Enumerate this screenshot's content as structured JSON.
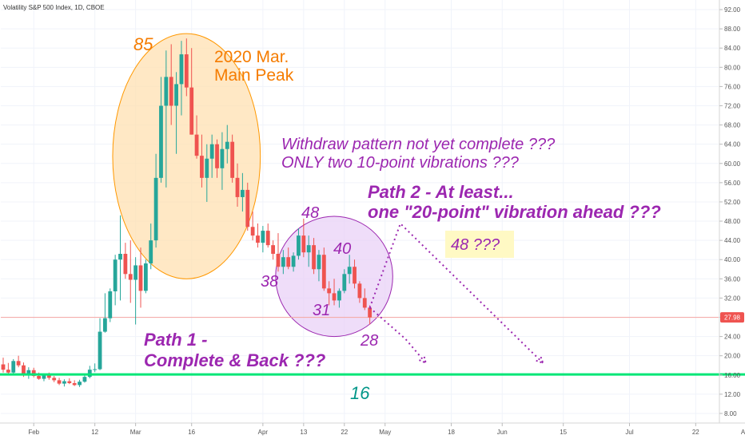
{
  "chart_data": {
    "type": "candlestick",
    "title": "Volatility S&P 500 Index, 1D, CBOE",
    "price_label": "27.98",
    "ylim": [
      6,
      94
    ],
    "yticks": [
      8,
      12,
      16,
      20,
      24,
      28,
      32,
      36,
      40,
      44,
      48,
      52,
      56,
      60,
      64,
      68,
      72,
      76,
      80,
      84,
      88,
      92
    ],
    "ytick_labels": [
      "8.00",
      "12.00",
      "16.00",
      "20.00",
      "24.00",
      "28.00",
      "32.00",
      "36.00",
      "40.00",
      "44.00",
      "48.00",
      "52.00",
      "56.00",
      "60.00",
      "64.00",
      "68.00",
      "72.00",
      "76.00",
      "80.00",
      "84.00",
      "88.00",
      "92.00"
    ],
    "x_index_range": [
      0,
      152
    ],
    "xticks": [
      {
        "i": 6,
        "label": "Feb"
      },
      {
        "i": 18,
        "label": "12"
      },
      {
        "i": 26,
        "label": "Mar"
      },
      {
        "i": 37,
        "label": "16"
      },
      {
        "i": 51,
        "label": "Apr"
      },
      {
        "i": 59,
        "label": "13"
      },
      {
        "i": 67,
        "label": "22"
      },
      {
        "i": 75,
        "label": "May"
      },
      {
        "i": 88,
        "label": "18"
      },
      {
        "i": 98,
        "label": "Jun"
      },
      {
        "i": 110,
        "label": "15"
      },
      {
        "i": 123,
        "label": "Jul"
      },
      {
        "i": 136,
        "label": "22"
      },
      {
        "i": 146,
        "label": "Aug"
      }
    ],
    "candles": [
      {
        "o": 18.2,
        "h": 19.6,
        "l": 16.5,
        "c": 17.1
      },
      {
        "o": 17.1,
        "h": 18.5,
        "l": 16.2,
        "c": 16.5
      },
      {
        "o": 16.5,
        "h": 19.3,
        "l": 16.0,
        "c": 18.9
      },
      {
        "o": 18.9,
        "h": 20.0,
        "l": 17.6,
        "c": 18.0
      },
      {
        "o": 18.0,
        "h": 18.6,
        "l": 15.6,
        "c": 16.0
      },
      {
        "o": 16.0,
        "h": 17.6,
        "l": 15.2,
        "c": 17.0
      },
      {
        "o": 17.0,
        "h": 17.5,
        "l": 15.5,
        "c": 15.8
      },
      {
        "o": 15.8,
        "h": 16.5,
        "l": 15.0,
        "c": 15.2
      },
      {
        "o": 15.2,
        "h": 16.3,
        "l": 14.7,
        "c": 16.0
      },
      {
        "o": 16.0,
        "h": 16.5,
        "l": 15.0,
        "c": 15.4
      },
      {
        "o": 15.4,
        "h": 15.8,
        "l": 14.5,
        "c": 14.9
      },
      {
        "o": 14.9,
        "h": 15.4,
        "l": 13.9,
        "c": 14.2
      },
      {
        "o": 14.2,
        "h": 15.1,
        "l": 13.6,
        "c": 14.7
      },
      {
        "o": 14.7,
        "h": 15.3,
        "l": 14.1,
        "c": 14.3
      },
      {
        "o": 14.3,
        "h": 14.9,
        "l": 13.7,
        "c": 13.9
      },
      {
        "o": 13.9,
        "h": 15.0,
        "l": 13.5,
        "c": 14.6
      },
      {
        "o": 14.6,
        "h": 16.2,
        "l": 14.4,
        "c": 15.6
      },
      {
        "o": 15.6,
        "h": 17.9,
        "l": 15.3,
        "c": 17.1
      },
      {
        "o": 17.1,
        "h": 18.4,
        "l": 16.6,
        "c": 17.2
      },
      {
        "o": 17.2,
        "h": 27.8,
        "l": 17.0,
        "c": 25.0
      },
      {
        "o": 25.0,
        "h": 33.0,
        "l": 24.8,
        "c": 27.8
      },
      {
        "o": 27.8,
        "h": 34.0,
        "l": 27.0,
        "c": 33.4
      },
      {
        "o": 33.4,
        "h": 41.0,
        "l": 30.5,
        "c": 40.0
      },
      {
        "o": 40.0,
        "h": 49.2,
        "l": 31.5,
        "c": 41.2
      },
      {
        "o": 41.2,
        "h": 43.5,
        "l": 36.0,
        "c": 37.0
      },
      {
        "o": 37.0,
        "h": 44.0,
        "l": 31.0,
        "c": 35.8
      },
      {
        "o": 35.8,
        "h": 40.5,
        "l": 26.5,
        "c": 38.8
      },
      {
        "o": 38.8,
        "h": 42.5,
        "l": 30.0,
        "c": 33.5
      },
      {
        "o": 33.5,
        "h": 40.0,
        "l": 33.0,
        "c": 39.2
      },
      {
        "o": 39.2,
        "h": 47.5,
        "l": 38.0,
        "c": 44.0
      },
      {
        "o": 44.0,
        "h": 62.0,
        "l": 42.5,
        "c": 57.0
      },
      {
        "o": 57.0,
        "h": 78.0,
        "l": 56.0,
        "c": 72.0
      },
      {
        "o": 72.0,
        "h": 83.5,
        "l": 55.0,
        "c": 78.0
      },
      {
        "o": 78.0,
        "h": 84.8,
        "l": 68.0,
        "c": 72.0
      },
      {
        "o": 72.0,
        "h": 79.0,
        "l": 62.0,
        "c": 76.5
      },
      {
        "o": 76.5,
        "h": 85.5,
        "l": 70.0,
        "c": 82.7
      },
      {
        "o": 82.7,
        "h": 86.0,
        "l": 74.0,
        "c": 75.8
      },
      {
        "o": 75.8,
        "h": 84.0,
        "l": 66.0,
        "c": 66.0
      },
      {
        "o": 66.0,
        "h": 70.0,
        "l": 61.0,
        "c": 61.6
      },
      {
        "o": 61.6,
        "h": 66.0,
        "l": 55.0,
        "c": 57.0
      },
      {
        "o": 57.0,
        "h": 64.0,
        "l": 52.0,
        "c": 61.0
      },
      {
        "o": 61.0,
        "h": 66.0,
        "l": 57.0,
        "c": 64.0
      },
      {
        "o": 64.0,
        "h": 65.0,
        "l": 57.0,
        "c": 59.0
      },
      {
        "o": 59.0,
        "h": 66.5,
        "l": 54.5,
        "c": 63.0
      },
      {
        "o": 63.0,
        "h": 68.0,
        "l": 60.0,
        "c": 64.5
      },
      {
        "o": 64.5,
        "h": 66.0,
        "l": 56.0,
        "c": 57.0
      },
      {
        "o": 57.0,
        "h": 60.0,
        "l": 51.0,
        "c": 53.0
      },
      {
        "o": 53.0,
        "h": 58.0,
        "l": 50.0,
        "c": 54.5
      },
      {
        "o": 54.5,
        "h": 56.0,
        "l": 46.0,
        "c": 46.8
      },
      {
        "o": 46.8,
        "h": 50.0,
        "l": 44.0,
        "c": 45.0
      },
      {
        "o": 45.0,
        "h": 47.5,
        "l": 42.5,
        "c": 43.5
      },
      {
        "o": 43.5,
        "h": 47.0,
        "l": 41.5,
        "c": 46.0
      },
      {
        "o": 46.0,
        "h": 47.5,
        "l": 42.5,
        "c": 43.0
      },
      {
        "o": 43.0,
        "h": 44.0,
        "l": 40.0,
        "c": 41.2
      },
      {
        "o": 41.2,
        "h": 45.5,
        "l": 37.5,
        "c": 38.5
      },
      {
        "o": 38.5,
        "h": 42.0,
        "l": 37.0,
        "c": 40.5
      },
      {
        "o": 40.5,
        "h": 42.5,
        "l": 38.0,
        "c": 38.5
      },
      {
        "o": 38.5,
        "h": 41.5,
        "l": 37.5,
        "c": 40.8
      },
      {
        "o": 40.8,
        "h": 46.5,
        "l": 40.0,
        "c": 45.0
      },
      {
        "o": 45.0,
        "h": 48.5,
        "l": 40.5,
        "c": 41.5
      },
      {
        "o": 41.5,
        "h": 45.0,
        "l": 38.5,
        "c": 43.0
      },
      {
        "o": 43.0,
        "h": 44.5,
        "l": 37.0,
        "c": 38.0
      },
      {
        "o": 38.0,
        "h": 42.0,
        "l": 35.5,
        "c": 41.0
      },
      {
        "o": 41.0,
        "h": 42.5,
        "l": 33.5,
        "c": 34.0
      },
      {
        "o": 34.0,
        "h": 35.5,
        "l": 30.5,
        "c": 33.0
      },
      {
        "o": 33.0,
        "h": 36.0,
        "l": 30.5,
        "c": 31.5
      },
      {
        "o": 31.5,
        "h": 34.0,
        "l": 30.0,
        "c": 33.5
      },
      {
        "o": 33.5,
        "h": 38.0,
        "l": 33.0,
        "c": 37.0
      },
      {
        "o": 37.0,
        "h": 41.0,
        "l": 35.0,
        "c": 38.5
      },
      {
        "o": 38.5,
        "h": 40.0,
        "l": 34.0,
        "c": 35.0
      },
      {
        "o": 35.0,
        "h": 35.5,
        "l": 31.0,
        "c": 32.0
      },
      {
        "o": 32.0,
        "h": 34.0,
        "l": 29.5,
        "c": 30.0
      },
      {
        "o": 30.0,
        "h": 30.5,
        "l": 26.5,
        "c": 27.98
      }
    ],
    "support_level": 16.1,
    "support_x_range": [
      0,
      146
    ],
    "path1_points": [
      [
        72,
        30.0
      ],
      [
        79,
        23.5
      ],
      [
        83,
        18.5
      ]
    ],
    "path2_points": [
      [
        72,
        30.0
      ],
      [
        78,
        47.5
      ],
      [
        106,
        18.5
      ]
    ],
    "peak_ellipse": {
      "cx": 36,
      "cy": 61.5,
      "rx": 14.5,
      "ry": 25.5
    },
    "pullback_ellipse": {
      "cx": 65,
      "cy": 36.5,
      "rx": 11.5,
      "ry": 12.5
    },
    "colors": {
      "up": "#26a69a",
      "down": "#ef5350",
      "support": "#00e676",
      "path": "#9c27b0",
      "peak_fill": "#ffe0b2",
      "peak_stroke": "#ff9800",
      "pullback_fill": "#ead2f7",
      "pullback_stroke": "#9c27b0",
      "orange_text": "#f57c00",
      "purple_text": "#9c27b0",
      "teal_text": "#009688",
      "highlight": "#fff9c4",
      "price_line": "#f5a5a0",
      "price_tag": "#ef5350"
    }
  },
  "annotations": {
    "peak_number": "85",
    "peak_title_line1": "2020 Mar.",
    "peak_title_line2": "Main Peak",
    "withdraw_line1": "Withdraw pattern not yet complete ???",
    "withdraw_line2": "ONLY two 10-point vibrations ???",
    "path2_line1": "Path 2 - At least...",
    "path2_line2": "one \"20-point\" vibration ahead ???",
    "target_48": "48 ???",
    "label_48": "48",
    "label_40": "40",
    "label_38": "38",
    "label_31": "31",
    "label_28": "28",
    "path1_line1": "Path 1 -",
    "path1_line2": "Complete & Back ???",
    "label_16": "16"
  }
}
